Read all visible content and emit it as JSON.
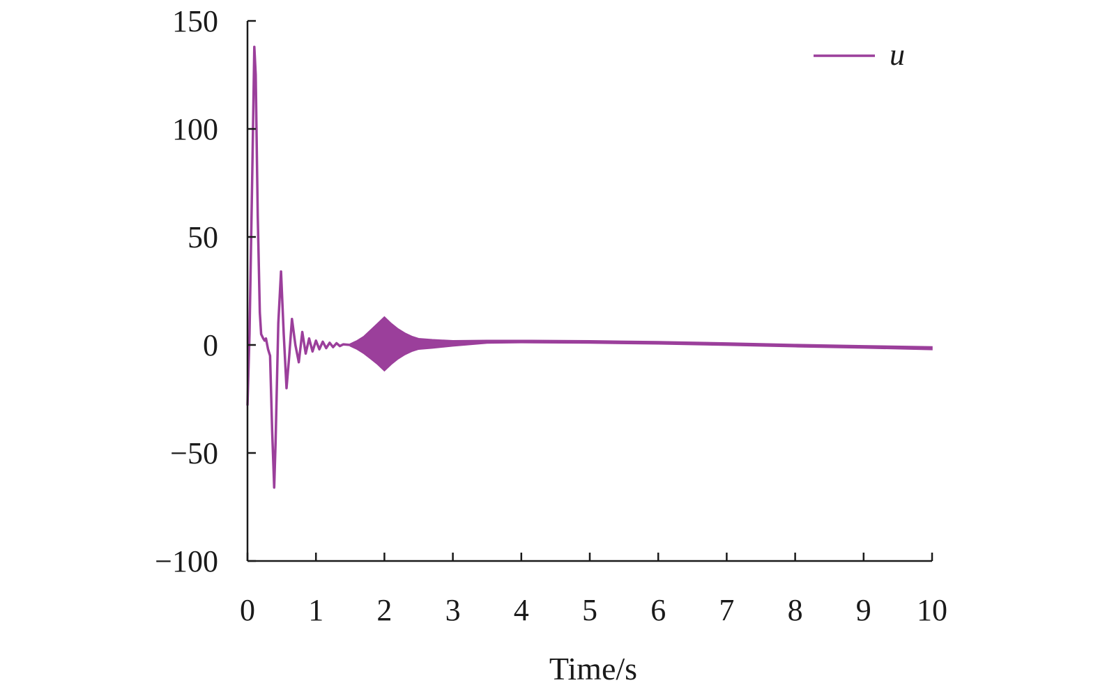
{
  "chart_data": {
    "type": "line",
    "xlabel": "Time/s",
    "ylabel": "",
    "xlim": [
      0,
      10
    ],
    "ylim": [
      -100,
      150
    ],
    "x_ticks": [
      "0",
      "1",
      "2",
      "3",
      "4",
      "5",
      "6",
      "7",
      "8",
      "9",
      "10"
    ],
    "y_ticks": [
      "150",
      "100",
      "50",
      "0",
      "−50",
      "−100"
    ],
    "legend_position": "top-right",
    "series": [
      {
        "name": "u",
        "color": "#9b3f9b",
        "x": [
          0,
          0.03,
          0.07,
          0.1,
          0.12,
          0.15,
          0.18,
          0.2,
          0.23,
          0.25,
          0.27,
          0.3,
          0.33,
          0.36,
          0.39,
          0.41,
          0.45,
          0.49,
          0.53,
          0.57,
          0.61,
          0.65,
          0.7,
          0.75,
          0.8,
          0.85,
          0.9,
          0.95,
          1.0,
          1.05,
          1.1,
          1.15,
          1.2,
          1.25,
          1.3,
          1.35,
          1.4,
          1.5
        ],
        "values": [
          -28,
          5,
          80,
          138,
          125,
          60,
          15,
          5,
          3,
          2,
          3,
          -2,
          -5,
          -40,
          -66,
          -45,
          10,
          34,
          5,
          -20,
          -5,
          12,
          0,
          -8,
          6,
          -4,
          3,
          -3,
          2,
          -2,
          1.5,
          -1.5,
          1,
          -1,
          0.8,
          -0.5,
          0.3,
          0
        ],
        "oscillation_envelope": {
          "x": [
            1.5,
            1.6,
            1.7,
            1.8,
            1.9,
            2.0,
            2.1,
            2.2,
            2.3,
            2.4,
            2.5,
            2.7,
            3.0,
            3.5,
            4.0,
            5.0,
            6.0,
            7.0,
            8.0,
            9.0,
            10.0
          ],
          "upper": [
            0.5,
            2,
            4,
            7,
            10,
            13,
            10,
            7.5,
            5.5,
            4,
            3,
            2.5,
            2,
            2.2,
            2.2,
            2.0,
            1.6,
            1.0,
            0.3,
            -0.3,
            -0.8
          ],
          "lower": [
            -0.5,
            -2,
            -4,
            -6.5,
            -9,
            -12,
            -9,
            -6.5,
            -4.5,
            -3,
            -2,
            -1.5,
            -0.5,
            0.8,
            1.0,
            0.8,
            0.4,
            -0.2,
            -0.9,
            -1.5,
            -2.2
          ]
        }
      }
    ]
  }
}
